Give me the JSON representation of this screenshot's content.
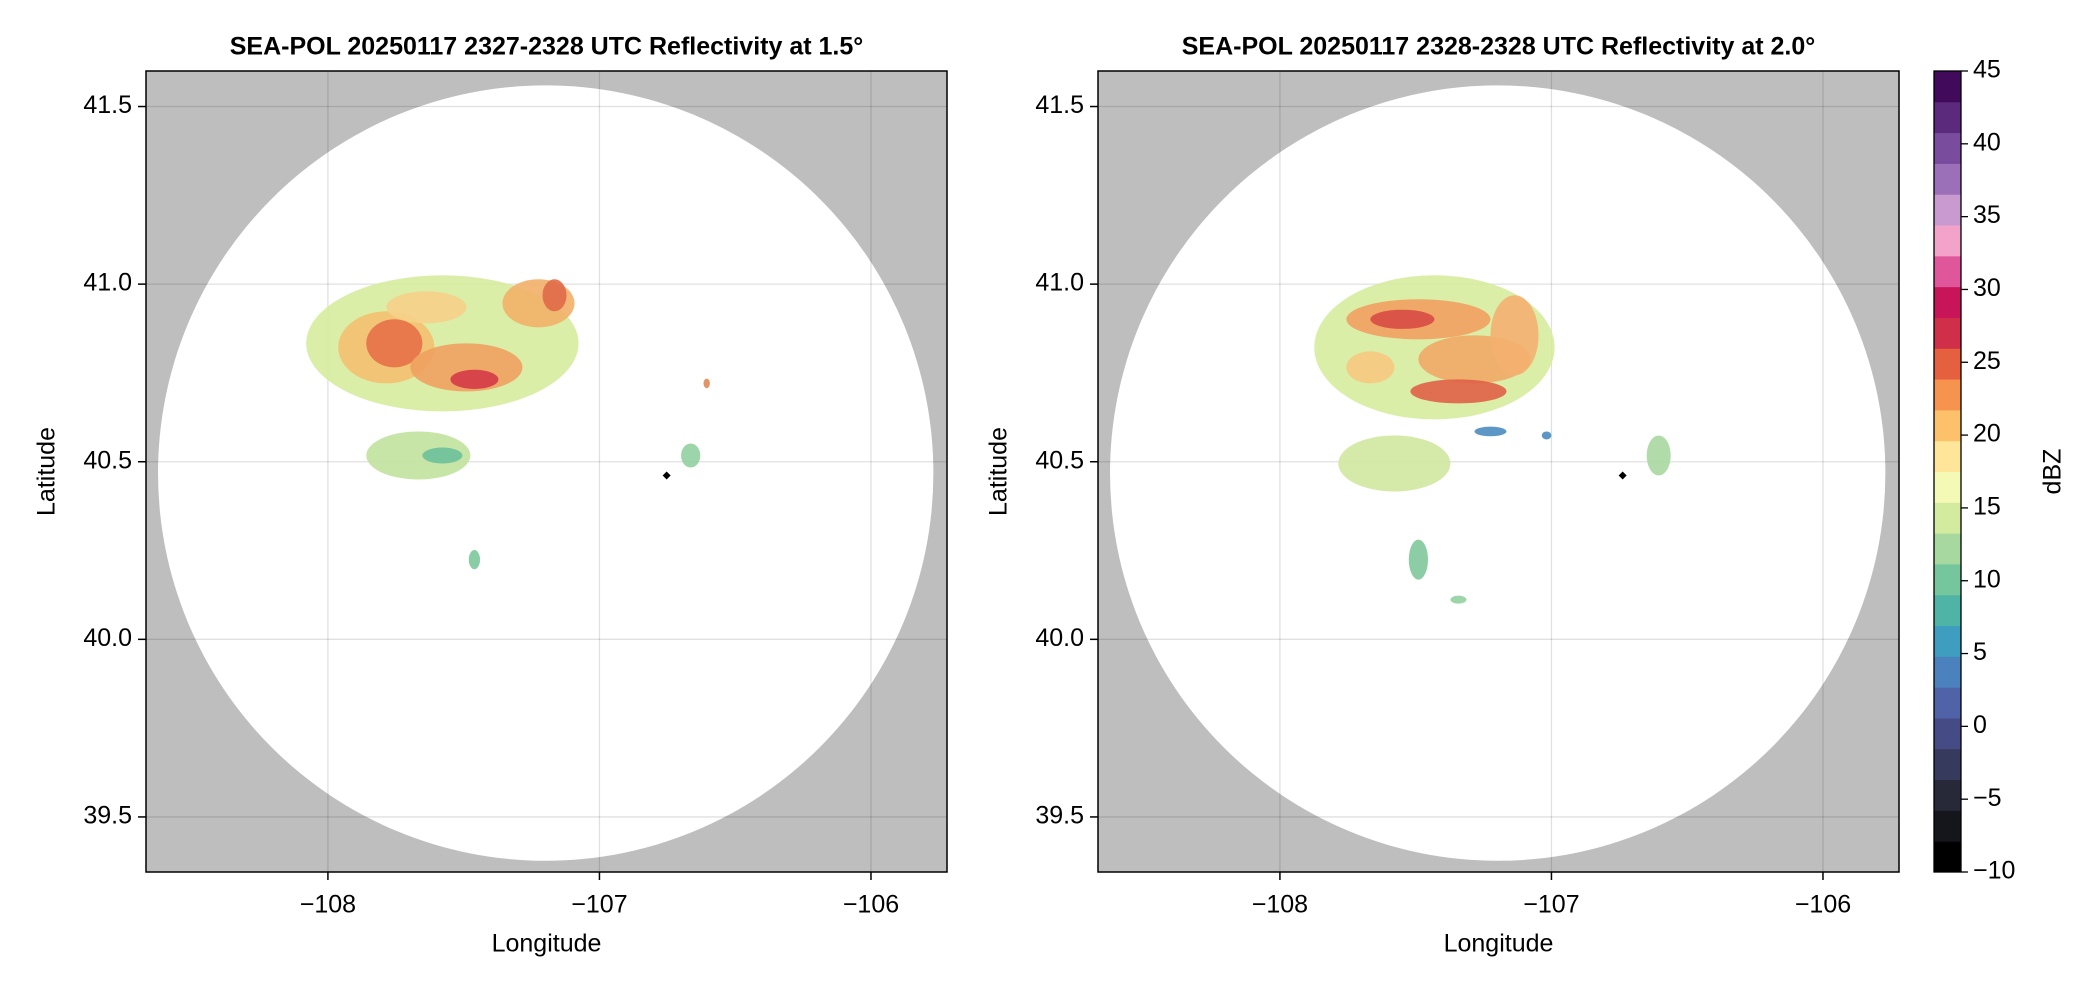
{
  "chart_data": [
    {
      "type": "radar-map",
      "title": "SEA-POL 20250117 2327-2328 UTC Reflectivity at 1.5°",
      "xlabel": "Longitude",
      "ylabel": "Latitude",
      "xlim": [
        -108.67,
        -105.72
      ],
      "ylim": [
        39.345,
        41.6
      ],
      "xticks": [
        {
          "value": -108,
          "label": "−108"
        },
        {
          "value": -107,
          "label": "−107"
        },
        {
          "value": -106,
          "label": "−106"
        }
      ],
      "yticks": [
        39.5,
        {
          "value": 40.0,
          "label": "40.0"
        },
        40.5,
        {
          "value": 41.0,
          "label": "41.0"
        },
        41.5
      ],
      "grid": true,
      "background": "#bebebe"
    },
    {
      "type": "radar-map",
      "title": "SEA-POL 20250117 2328-2328 UTC Reflectivity at 2.0°",
      "xlabel": "Longitude",
      "ylabel": "Latitude",
      "xlim": [
        -108.67,
        -105.72
      ],
      "ylim": [
        39.345,
        41.6
      ],
      "xticks": [
        {
          "value": -108,
          "label": "−108"
        },
        {
          "value": -107,
          "label": "−107"
        },
        {
          "value": -106,
          "label": "−106"
        }
      ],
      "yticks": [
        39.5,
        {
          "value": 40.0,
          "label": "40.0"
        },
        40.5,
        {
          "value": 41.0,
          "label": "41.0"
        },
        41.5
      ],
      "grid": true,
      "background": "#bebebe"
    },
    {
      "type": "colorbar",
      "label": "dBZ",
      "clim": [
        -10,
        45
      ],
      "ticks": [
        {
          "value": -10,
          "label": "−10"
        },
        {
          "value": -5,
          "label": "−5"
        },
        0,
        5,
        10,
        15,
        20,
        25,
        30,
        35,
        40,
        45
      ],
      "colors": [
        "#000000",
        "#15151c",
        "#272838",
        "#363a5c",
        "#454c85",
        "#5062a8",
        "#4b82bd",
        "#3f9ec0",
        "#4fb3a6",
        "#76c69d",
        "#a6d8a0",
        "#d2eb9e",
        "#f4f9b6",
        "#fee599",
        "#fdc06b",
        "#f6934f",
        "#e5603f",
        "#cf2f48",
        "#c8155a",
        "#e0569a",
        "#f3a3c9",
        "#c89ad0",
        "#9b70b8",
        "#7a4c9e",
        "#5c2a7c",
        "#420a5a"
      ]
    }
  ]
}
